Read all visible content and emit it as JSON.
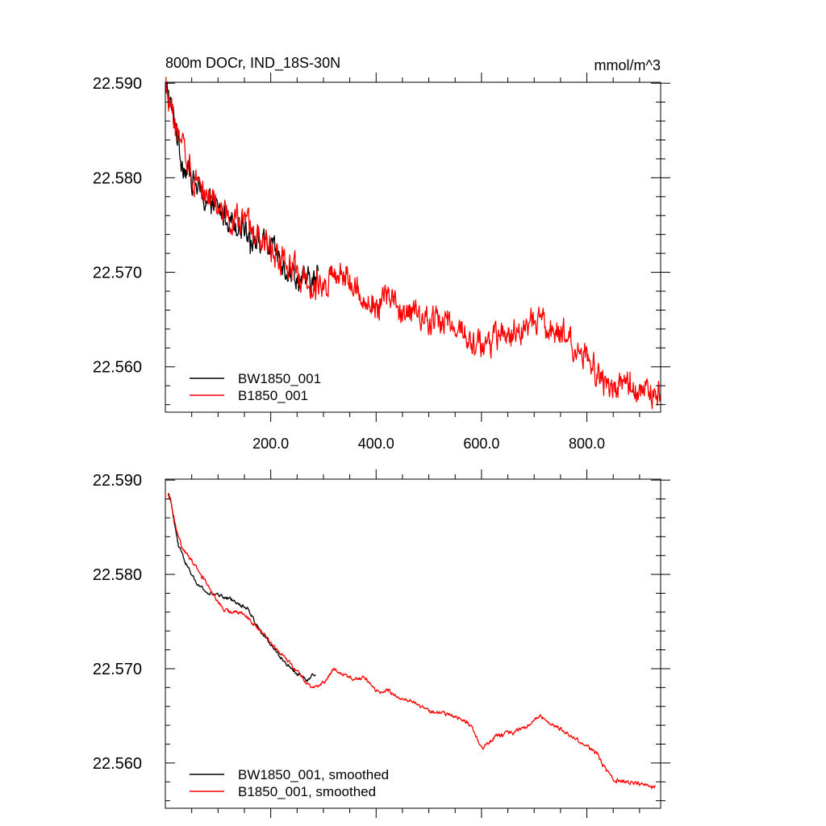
{
  "chart_data": [
    {
      "type": "line",
      "title": "800m DOCr, IND_18S-30N",
      "units_label": "mmol/m^3",
      "xlim": [
        0,
        940
      ],
      "ylim": [
        22.5552,
        22.5901
      ],
      "x_ticks": [
        200,
        400,
        600,
        800
      ],
      "x_tick_labels": [
        "200.0",
        "400.0",
        "600.0",
        "800.0"
      ],
      "y_ticks": [
        22.59,
        22.58,
        22.57,
        22.56
      ],
      "y_tick_labels": [
        "22.590",
        "22.580",
        "22.570",
        "22.560"
      ],
      "legend_position": "bottom-left",
      "series": [
        {
          "name": "BW1850_001",
          "color": "#000000",
          "noise": 0.0011,
          "anchors": [
            [
              1,
              22.5885
            ],
            [
              5,
              22.5895
            ],
            [
              10,
              22.5875
            ],
            [
              20,
              22.5855
            ],
            [
              30,
              22.582
            ],
            [
              50,
              22.58
            ],
            [
              70,
              22.578
            ],
            [
              100,
              22.5765
            ],
            [
              130,
              22.5755
            ],
            [
              150,
              22.575
            ],
            [
              170,
              22.5735
            ],
            [
              200,
              22.5725
            ],
            [
              230,
              22.5705
            ],
            [
              260,
              22.569
            ],
            [
              285,
              22.569
            ],
            [
              290,
              22.57
            ]
          ]
        },
        {
          "name": "B1850_001",
          "color": "#ff0000",
          "noise": 0.0012,
          "anchors": [
            [
              1,
              22.589
            ],
            [
              10,
              22.588
            ],
            [
              20,
              22.585
            ],
            [
              35,
              22.5825
            ],
            [
              50,
              22.581
            ],
            [
              80,
              22.578
            ],
            [
              110,
              22.5765
            ],
            [
              150,
              22.575
            ],
            [
              200,
              22.5725
            ],
            [
              240,
              22.5705
            ],
            [
              270,
              22.569
            ],
            [
              300,
              22.569
            ],
            [
              330,
              22.5697
            ],
            [
              360,
              22.5685
            ],
            [
              380,
              22.5672
            ],
            [
              400,
              22.5665
            ],
            [
              420,
              22.5675
            ],
            [
              450,
              22.566
            ],
            [
              480,
              22.5653
            ],
            [
              500,
              22.565
            ],
            [
              550,
              22.5645
            ],
            [
              580,
              22.563
            ],
            [
              600,
              22.562
            ],
            [
              630,
              22.563
            ],
            [
              670,
              22.5635
            ],
            [
              700,
              22.565
            ],
            [
              720,
              22.564
            ],
            [
              750,
              22.5635
            ],
            [
              790,
              22.562
            ],
            [
              810,
              22.5605
            ],
            [
              830,
              22.558
            ],
            [
              850,
              22.558
            ],
            [
              900,
              22.5575
            ],
            [
              940,
              22.5572
            ]
          ]
        }
      ]
    },
    {
      "type": "line",
      "title": "",
      "xlim": [
        0,
        940
      ],
      "ylim": [
        22.5552,
        22.5901
      ],
      "x_ticks": [
        200,
        400,
        600,
        800
      ],
      "y_ticks": [
        22.59,
        22.58,
        22.57,
        22.56
      ],
      "y_tick_labels": [
        "22.590",
        "22.580",
        "22.570",
        "22.560"
      ],
      "legend_position": "bottom-left",
      "series": [
        {
          "name": "BW1850_001, smoothed",
          "color": "#000000",
          "noise": 0.00015,
          "anchors": [
            [
              5,
              22.5885
            ],
            [
              10,
              22.588
            ],
            [
              15,
              22.586
            ],
            [
              25,
              22.583
            ],
            [
              40,
              22.581
            ],
            [
              60,
              22.579
            ],
            [
              80,
              22.578
            ],
            [
              100,
              22.5778
            ],
            [
              120,
              22.5775
            ],
            [
              130,
              22.5772
            ],
            [
              140,
              22.5768
            ],
            [
              155,
              22.5765
            ],
            [
              175,
              22.5745
            ],
            [
              200,
              22.5725
            ],
            [
              230,
              22.5705
            ],
            [
              250,
              22.5695
            ],
            [
              270,
              22.5688
            ],
            [
              285,
              22.5695
            ]
          ]
        },
        {
          "name": "B1850_001, smoothed",
          "color": "#ff0000",
          "noise": 0.00016,
          "anchors": [
            [
              5,
              22.5885
            ],
            [
              10,
              22.588
            ],
            [
              20,
              22.585
            ],
            [
              30,
              22.583
            ],
            [
              50,
              22.5815
            ],
            [
              80,
              22.579
            ],
            [
              110,
              22.5762
            ],
            [
              150,
              22.5758
            ],
            [
              200,
              22.5728
            ],
            [
              230,
              22.571
            ],
            [
              260,
              22.569
            ],
            [
              280,
              22.568
            ],
            [
              300,
              22.5685
            ],
            [
              320,
              22.57
            ],
            [
              350,
              22.569
            ],
            [
              380,
              22.569
            ],
            [
              400,
              22.5675
            ],
            [
              420,
              22.5678
            ],
            [
              440,
              22.567
            ],
            [
              470,
              22.5665
            ],
            [
              500,
              22.5655
            ],
            [
              550,
              22.565
            ],
            [
              580,
              22.564
            ],
            [
              600,
              22.5615
            ],
            [
              630,
              22.563
            ],
            [
              660,
              22.5633
            ],
            [
              690,
              22.564
            ],
            [
              710,
              22.565
            ],
            [
              740,
              22.564
            ],
            [
              780,
              22.5625
            ],
            [
              820,
              22.561
            ],
            [
              830,
              22.5598
            ],
            [
              850,
              22.5582
            ],
            [
              870,
              22.558
            ],
            [
              900,
              22.5578
            ],
            [
              930,
              22.5575
            ]
          ]
        }
      ]
    }
  ]
}
